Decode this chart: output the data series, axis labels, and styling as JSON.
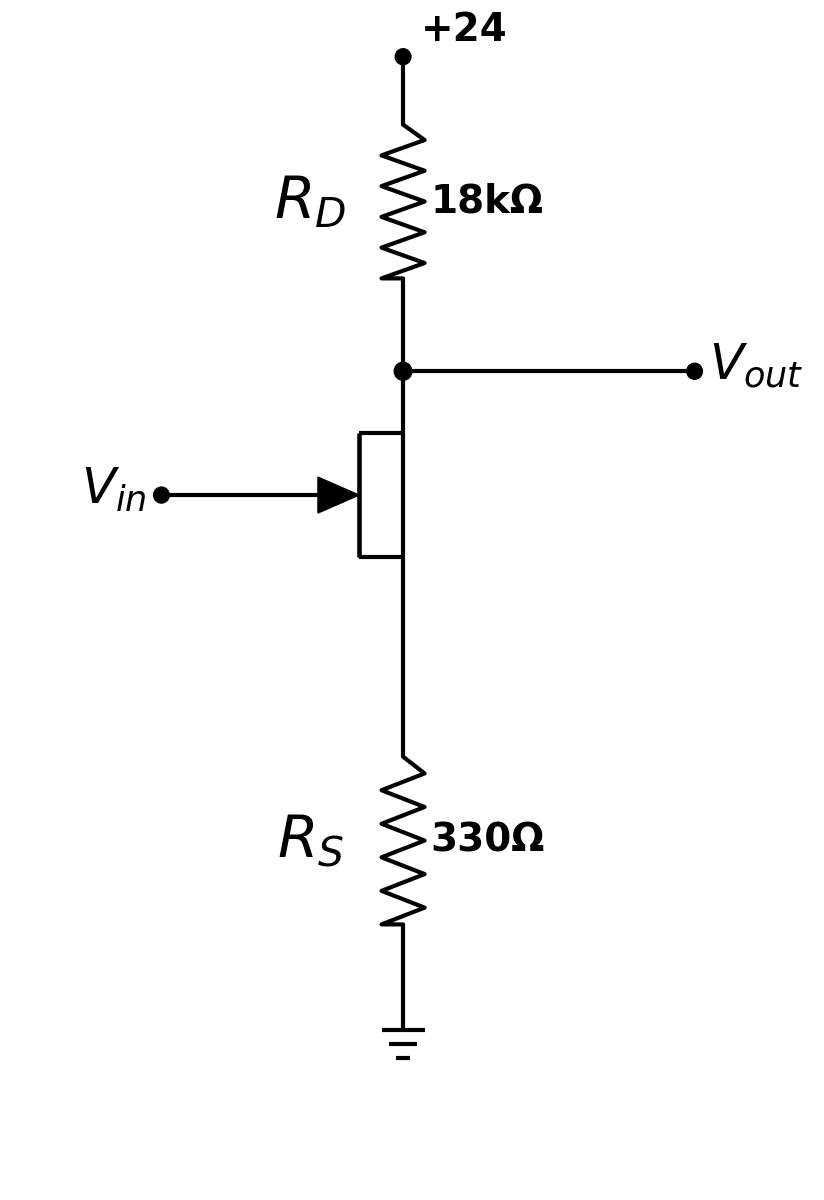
{
  "bg_color": "#ffffff",
  "line_color": "#000000",
  "line_width": 3.0,
  "figsize": [
    8.24,
    12.0
  ],
  "dpi": 100,
  "vdd_label": "+24",
  "rd_value": "18kΩ",
  "rs_value": "330Ω"
}
